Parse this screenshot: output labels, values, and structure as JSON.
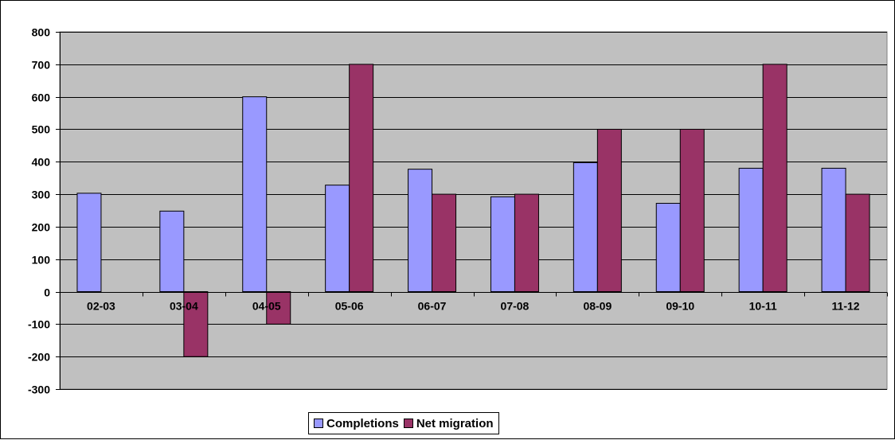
{
  "chart_data": {
    "type": "bar",
    "categories": [
      "02-03",
      "03-04",
      "04-05",
      "05-06",
      "06-07",
      "07-08",
      "08-09",
      "09-10",
      "10-11",
      "11-12"
    ],
    "series": [
      {
        "name": "Completions",
        "values": [
          303,
          248,
          600,
          328,
          377,
          292,
          397,
          272,
          380,
          380
        ],
        "color": "#9999ff"
      },
      {
        "name": "Net migration",
        "values": [
          0,
          -200,
          -100,
          700,
          300,
          300,
          500,
          500,
          700,
          300
        ],
        "color": "#993366"
      }
    ],
    "ylim": [
      -300,
      800
    ],
    "yticks": [
      "800",
      "700",
      "600",
      "500",
      "400",
      "300",
      "200",
      "100",
      "0",
      "-100",
      "-200",
      "-300"
    ],
    "grid": true,
    "legend_position": "bottom-center",
    "plot_background": "#c0c0c0"
  }
}
